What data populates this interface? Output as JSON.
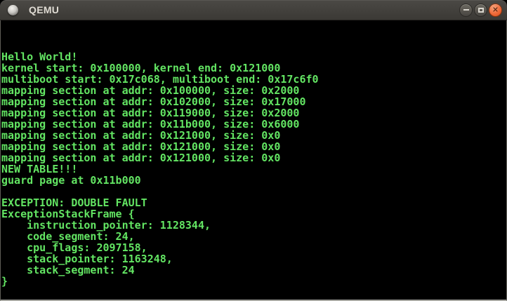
{
  "window": {
    "title": "QEMU",
    "icons": {
      "app": "qemu-app-icon",
      "minimize": "minimize-icon",
      "maximize": "maximize-icon",
      "close": "close-icon"
    },
    "controls": {
      "close_glyph": "✕"
    }
  },
  "terminal": {
    "background": "#000000",
    "text_color": "#63e563",
    "columns": 80,
    "rows": 25,
    "lines": [
      "Hello World!",
      "kernel start: 0x100000, kernel end: 0x121000",
      "multiboot start: 0x17c068, multiboot end: 0x17c6f0",
      "mapping section at addr: 0x100000, size: 0x2000",
      "mapping section at addr: 0x102000, size: 0x17000",
      "mapping section at addr: 0x119000, size: 0x2000",
      "mapping section at addr: 0x11b000, size: 0x6000",
      "mapping section at addr: 0x121000, size: 0x0",
      "mapping section at addr: 0x121000, size: 0x0",
      "mapping section at addr: 0x121000, size: 0x0",
      "NEW TABLE!!!",
      "guard page at 0x11b000",
      "",
      "EXCEPTION: DOUBLE FAULT",
      "ExceptionStackFrame {",
      "    instruction_pointer: 1128344,",
      "    code_segment: 24,",
      "    cpu_flags: 2097158,",
      "    stack_pointer: 1163248,",
      "    stack_segment: 24",
      "}"
    ]
  },
  "colors": {
    "titlebar_bg": "#3b3935",
    "close_button": "#ef6a39",
    "terminal_green": "#63e563"
  }
}
